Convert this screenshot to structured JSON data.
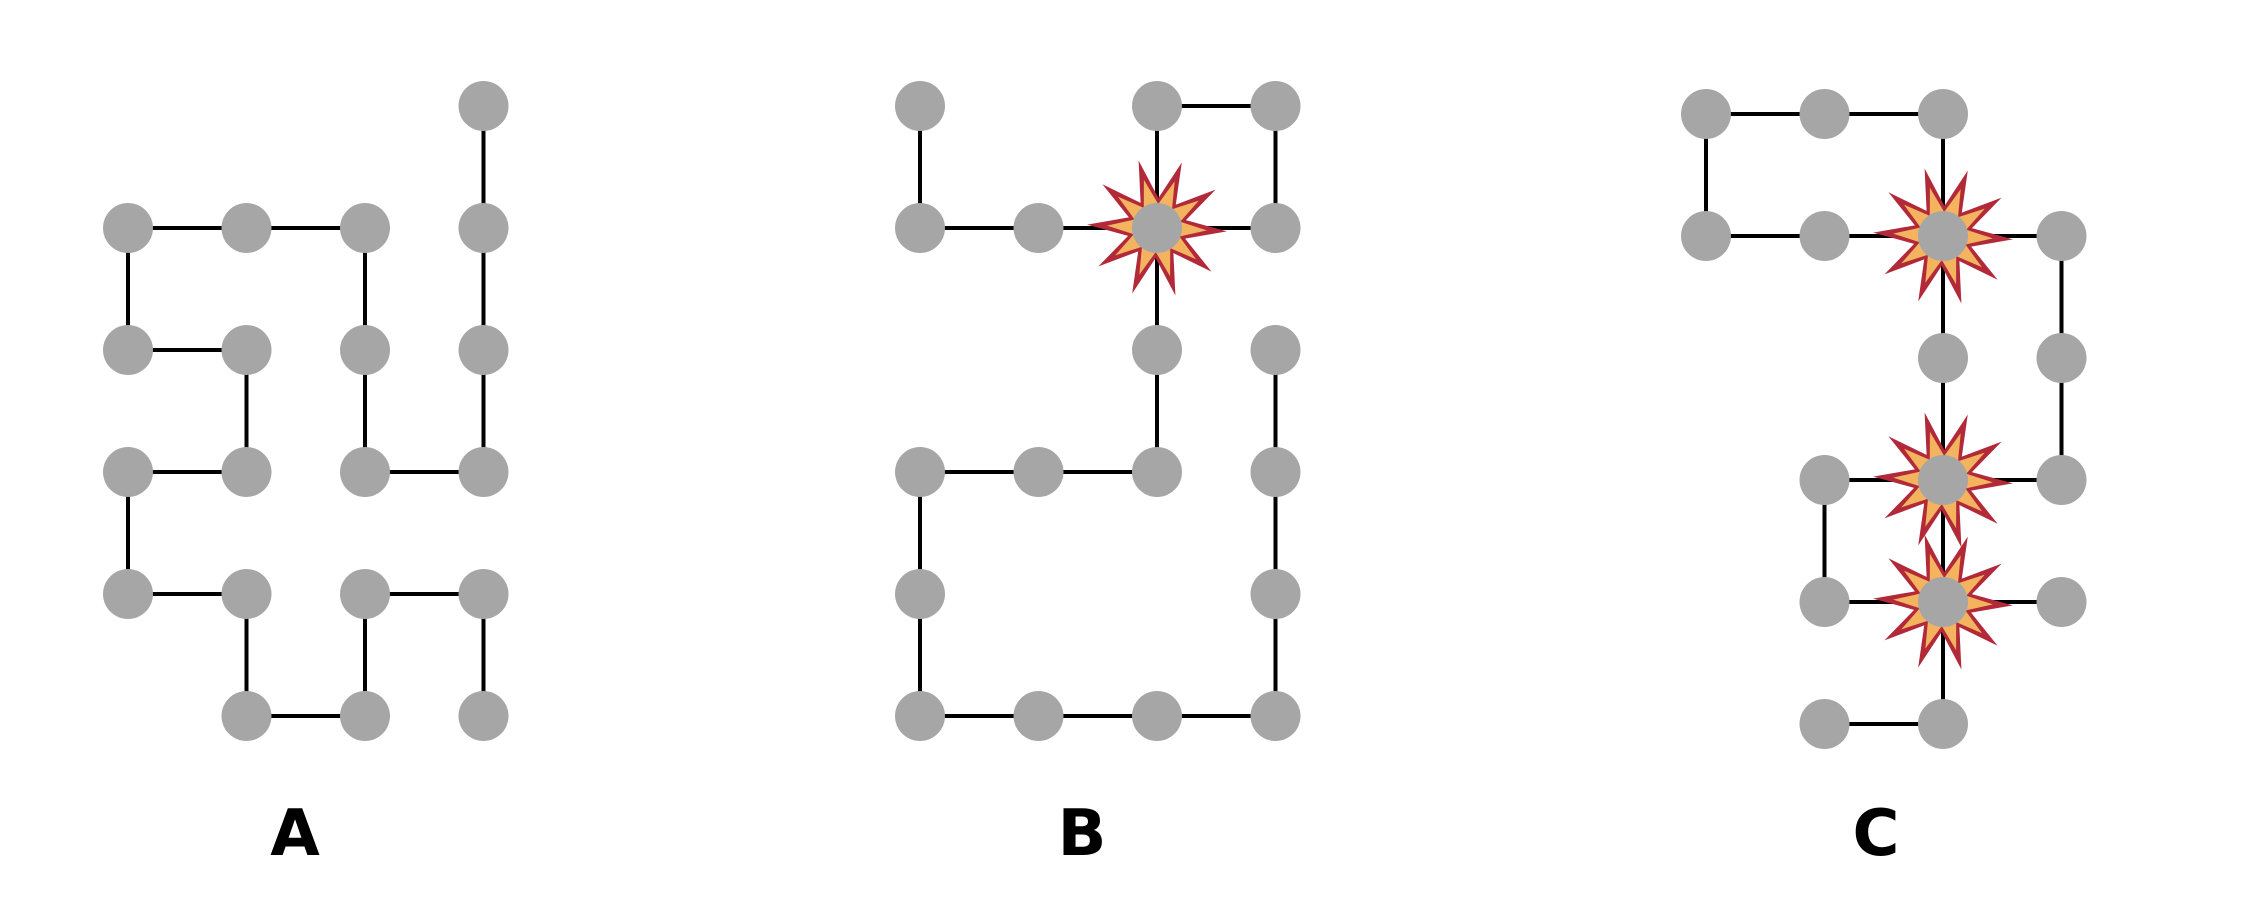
{
  "style": {
    "node_color": "#a6a6a6",
    "edge_color": "#000000",
    "burst_outer": "#b22a3a",
    "burst_inner": "#f4b35e"
  },
  "diagrams": [
    {
      "label": "A",
      "nodes": [
        [
          0,
          0
        ],
        [
          1,
          0
        ],
        [
          2,
          0
        ],
        [
          3,
          0
        ],
        [
          0,
          1
        ],
        [
          1,
          1
        ],
        [
          2,
          1
        ],
        [
          3,
          1
        ],
        [
          0,
          2
        ],
        [
          1,
          2
        ],
        [
          2,
          2
        ],
        [
          3,
          2
        ],
        [
          0,
          3
        ],
        [
          1,
          3
        ],
        [
          2,
          3
        ],
        [
          3,
          3
        ],
        [
          1,
          4
        ],
        [
          2,
          4
        ],
        [
          3,
          4
        ],
        [
          3,
          -1
        ]
      ],
      "edges": [
        [
          [
            0,
            0
          ],
          [
            1,
            0
          ]
        ],
        [
          [
            1,
            0
          ],
          [
            2,
            0
          ]
        ],
        [
          [
            0,
            0
          ],
          [
            0,
            1
          ]
        ],
        [
          [
            0,
            1
          ],
          [
            1,
            1
          ]
        ],
        [
          [
            1,
            1
          ],
          [
            1,
            2
          ]
        ],
        [
          [
            1,
            2
          ],
          [
            0,
            2
          ]
        ],
        [
          [
            0,
            2
          ],
          [
            0,
            3
          ]
        ],
        [
          [
            0,
            3
          ],
          [
            1,
            3
          ]
        ],
        [
          [
            1,
            3
          ],
          [
            1,
            4
          ]
        ],
        [
          [
            1,
            4
          ],
          [
            2,
            4
          ]
        ],
        [
          [
            2,
            4
          ],
          [
            2,
            3
          ]
        ],
        [
          [
            2,
            3
          ],
          [
            3,
            3
          ]
        ],
        [
          [
            3,
            3
          ],
          [
            3,
            4
          ]
        ],
        [
          [
            2,
            0
          ],
          [
            2,
            1
          ]
        ],
        [
          [
            2,
            1
          ],
          [
            2,
            2
          ]
        ],
        [
          [
            2,
            2
          ],
          [
            3,
            2
          ]
        ],
        [
          [
            3,
            2
          ],
          [
            3,
            1
          ]
        ],
        [
          [
            3,
            1
          ],
          [
            3,
            0
          ]
        ],
        [
          [
            3,
            0
          ],
          [
            3,
            -1
          ]
        ]
      ],
      "bursts": []
    },
    {
      "label": "B",
      "nodes": [
        [
          0,
          -1
        ],
        [
          0,
          0
        ],
        [
          1,
          0
        ],
        [
          2,
          0
        ],
        [
          2,
          -1
        ],
        [
          3,
          -1
        ],
        [
          3,
          0
        ],
        [
          2,
          1
        ],
        [
          2,
          2
        ],
        [
          1,
          2
        ],
        [
          0,
          2
        ],
        [
          0,
          3
        ],
        [
          0,
          4
        ],
        [
          1,
          4
        ],
        [
          2,
          4
        ],
        [
          3,
          4
        ],
        [
          3,
          3
        ],
        [
          3,
          2
        ],
        [
          3,
          1
        ]
      ],
      "edges": [
        [
          [
            0,
            -1
          ],
          [
            0,
            0
          ]
        ],
        [
          [
            0,
            0
          ],
          [
            1,
            0
          ]
        ],
        [
          [
            1,
            0
          ],
          [
            2,
            0
          ]
        ],
        [
          [
            2,
            0
          ],
          [
            2,
            -1
          ]
        ],
        [
          [
            2,
            -1
          ],
          [
            3,
            -1
          ]
        ],
        [
          [
            3,
            -1
          ],
          [
            3,
            0
          ]
        ],
        [
          [
            3,
            0
          ],
          [
            2,
            0
          ]
        ],
        [
          [
            2,
            0
          ],
          [
            2,
            1
          ]
        ],
        [
          [
            2,
            1
          ],
          [
            2,
            2
          ]
        ],
        [
          [
            2,
            2
          ],
          [
            1,
            2
          ]
        ],
        [
          [
            1,
            2
          ],
          [
            0,
            2
          ]
        ],
        [
          [
            0,
            2
          ],
          [
            0,
            3
          ]
        ],
        [
          [
            0,
            3
          ],
          [
            0,
            4
          ]
        ],
        [
          [
            0,
            4
          ],
          [
            1,
            4
          ]
        ],
        [
          [
            1,
            4
          ],
          [
            2,
            4
          ]
        ],
        [
          [
            2,
            4
          ],
          [
            3,
            4
          ]
        ],
        [
          [
            3,
            4
          ],
          [
            3,
            3
          ]
        ],
        [
          [
            3,
            3
          ],
          [
            3,
            2
          ]
        ],
        [
          [
            3,
            2
          ],
          [
            3,
            1
          ]
        ]
      ],
      "bursts": [
        [
          2,
          0
        ]
      ]
    },
    {
      "label": "C",
      "nodes": [
        [
          0,
          -1
        ],
        [
          1,
          -1
        ],
        [
          2,
          -1
        ],
        [
          0,
          0
        ],
        [
          1,
          0
        ],
        [
          2,
          0
        ],
        [
          3,
          0
        ],
        [
          2,
          1
        ],
        [
          3,
          1
        ],
        [
          3,
          2
        ],
        [
          2,
          2
        ],
        [
          1,
          2
        ],
        [
          1,
          3
        ],
        [
          2,
          3
        ],
        [
          3,
          3
        ],
        [
          2,
          4
        ],
        [
          1,
          4
        ]
      ],
      "edges": [
        [
          [
            0,
            -1
          ],
          [
            1,
            -1
          ]
        ],
        [
          [
            1,
            -1
          ],
          [
            2,
            -1
          ]
        ],
        [
          [
            2,
            -1
          ],
          [
            2,
            0
          ]
        ],
        [
          [
            2,
            0
          ],
          [
            1,
            0
          ]
        ],
        [
          [
            1,
            0
          ],
          [
            0,
            0
          ]
        ],
        [
          [
            0,
            0
          ],
          [
            0,
            -1
          ]
        ],
        [
          [
            2,
            0
          ],
          [
            3,
            0
          ]
        ],
        [
          [
            3,
            0
          ],
          [
            3,
            1
          ]
        ],
        [
          [
            3,
            1
          ],
          [
            3,
            2
          ]
        ],
        [
          [
            3,
            2
          ],
          [
            2,
            2
          ]
        ],
        [
          [
            2,
            0
          ],
          [
            2,
            1
          ]
        ],
        [
          [
            2,
            1
          ],
          [
            2,
            2
          ]
        ],
        [
          [
            2,
            2
          ],
          [
            1,
            2
          ]
        ],
        [
          [
            1,
            2
          ],
          [
            1,
            3
          ]
        ],
        [
          [
            1,
            3
          ],
          [
            2,
            3
          ]
        ],
        [
          [
            2,
            3
          ],
          [
            3,
            3
          ]
        ],
        [
          [
            2,
            2
          ],
          [
            2,
            3
          ]
        ],
        [
          [
            2,
            3
          ],
          [
            2,
            4
          ]
        ],
        [
          [
            2,
            4
          ],
          [
            1,
            4
          ]
        ]
      ],
      "bursts": [
        [
          2,
          0
        ],
        [
          2,
          2
        ],
        [
          2,
          3
        ]
      ]
    }
  ]
}
